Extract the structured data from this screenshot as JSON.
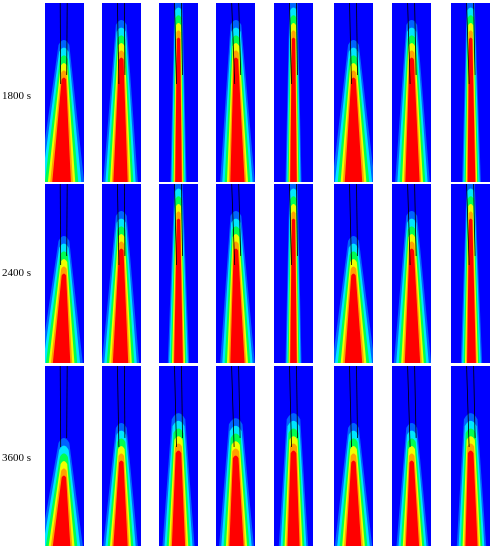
{
  "rows": [
    {
      "label": "1800 s"
    },
    {
      "label": "2400 s"
    },
    {
      "label": "3600 s"
    }
  ],
  "columns": 8,
  "colors": {
    "background": "#0000ff",
    "outer_glow": "#00b4ff",
    "cyan": "#00e6ff",
    "green": "#00ff50",
    "yellow": "#f0ff00",
    "orange": "#ffa000",
    "core": "#ff0000",
    "interface_line": "#000000",
    "separator": "#ffffff"
  }
}
